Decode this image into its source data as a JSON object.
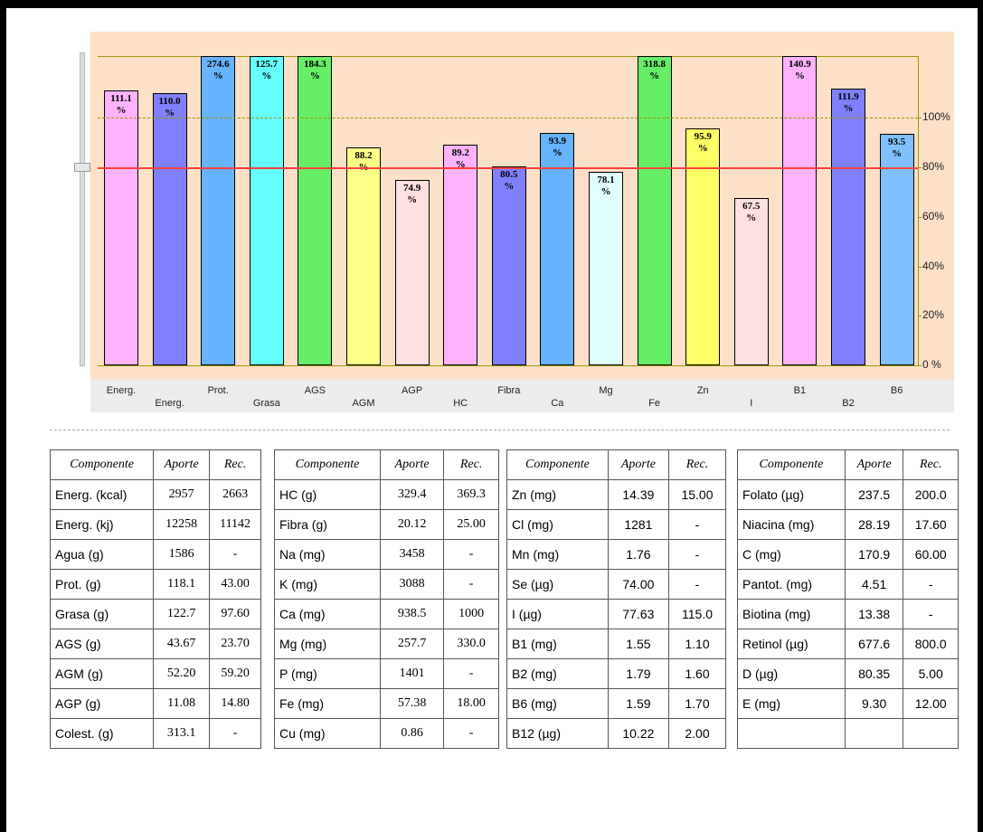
{
  "chart_data": {
    "type": "bar",
    "categories": [
      "Energ.",
      "Energ.",
      "Prot.",
      "Grasa",
      "AGS",
      "AGM",
      "AGP",
      "HC",
      "Fibra",
      "Ca",
      "Mg",
      "Fe",
      "Zn",
      "I",
      "B1",
      "B2",
      "B6"
    ],
    "values": [
      111.1,
      110.0,
      274.6,
      125.7,
      184.3,
      88.2,
      74.9,
      89.2,
      80.5,
      93.9,
      78.1,
      318.8,
      95.9,
      67.5,
      140.9,
      111.9,
      93.5
    ],
    "value_labels": [
      "111.1 %",
      "110.0 %",
      "274.6 %",
      "125.7 %",
      "184.3 %",
      "88.2 %",
      "74.9 %",
      "89.2 %",
      "80.5 %",
      "93.9 %",
      "78.1 %",
      "318.8 %",
      "95.9 %",
      "67.5 %",
      "140.9 %",
      "111.9 %",
      "93.5 %"
    ],
    "colors": [
      "#ffb3ff",
      "#8080ff",
      "#66b3ff",
      "#66ffff",
      "#66ee66",
      "#ffff88",
      "#ffe0e0",
      "#ffb3ff",
      "#8080ff",
      "#66b3ff",
      "#e0ffff",
      "#66ee66",
      "#ffff66",
      "#ffe0e0",
      "#ffb3ff",
      "#8080ff",
      "#80c0ff"
    ],
    "ylim": [
      0,
      125
    ],
    "yticks": [
      {
        "value": 0,
        "label": "0 %"
      },
      {
        "value": 20,
        "label": "20%"
      },
      {
        "value": 40,
        "label": "40%"
      },
      {
        "value": 60,
        "label": "60%"
      },
      {
        "value": 80,
        "label": "80%"
      },
      {
        "value": 100,
        "label": "100%"
      }
    ],
    "lines": [
      {
        "value": 80,
        "color": "#ff4040",
        "style": "solid"
      },
      {
        "value": 100,
        "color": "#999900",
        "style": "dashed"
      }
    ]
  },
  "tables": [
    {
      "header": [
        "Componente",
        "Aporte",
        "Rec."
      ],
      "rows": [
        [
          "Energ. (kcal)",
          "2957",
          "2663"
        ],
        [
          "Energ. (kj)",
          "12258",
          "11142"
        ],
        [
          "Agua (g)",
          "1586",
          "-"
        ],
        [
          "Prot. (g)",
          "118.1",
          "43.00"
        ],
        [
          "Grasa (g)",
          "122.7",
          "97.60"
        ],
        [
          "AGS (g)",
          "43.67",
          "23.70"
        ],
        [
          "AGM (g)",
          "52.20",
          "59.20"
        ],
        [
          "AGP (g)",
          "11.08",
          "14.80"
        ],
        [
          "Colest. (g)",
          "313.1",
          "-"
        ]
      ]
    },
    {
      "header": [
        "Componente",
        "Aporte",
        "Rec."
      ],
      "rows": [
        [
          "HC (g)",
          "329.4",
          "369.3"
        ],
        [
          "Fibra (g)",
          "20.12",
          "25.00"
        ],
        [
          "Na (mg)",
          "3458",
          "-"
        ],
        [
          "K (mg)",
          "3088",
          "-"
        ],
        [
          "Ca (mg)",
          "938.5",
          "1000"
        ],
        [
          "Mg (mg)",
          "257.7",
          "330.0"
        ],
        [
          "P (mg)",
          "1401",
          "-"
        ],
        [
          "Fe (mg)",
          "57.38",
          "18.00"
        ],
        [
          "Cu (mg)",
          "0.86",
          "-"
        ]
      ]
    },
    {
      "header": [
        "Componente",
        "Aporte",
        "Rec."
      ],
      "rows": [
        [
          "Zn (mg)",
          "14.39",
          "15.00"
        ],
        [
          "Cl (mg)",
          "1281",
          "-"
        ],
        [
          "Mn (mg)",
          "1.76",
          "-"
        ],
        [
          "Se (µg)",
          "74.00",
          "-"
        ],
        [
          "I (µg)",
          "77.63",
          "115.0"
        ],
        [
          "B1 (mg)",
          "1.55",
          "1.10"
        ],
        [
          "B2 (mg)",
          "1.79",
          "1.60"
        ],
        [
          "B6 (mg)",
          "1.59",
          "1.70"
        ],
        [
          "B12 (µg)",
          "10.22",
          "2.00"
        ]
      ]
    },
    {
      "header": [
        "Componente",
        "Aporte",
        "Rec."
      ],
      "rows": [
        [
          "Folato (µg)",
          "237.5",
          "200.0"
        ],
        [
          "Niacina (mg)",
          "28.19",
          "17.60"
        ],
        [
          "C (mg)",
          "170.9",
          "60.00"
        ],
        [
          "Pantot. (mg)",
          "4.51",
          "-"
        ],
        [
          "Biotina (mg)",
          "13.38",
          "-"
        ],
        [
          "Retinol (µg)",
          "677.6",
          "800.0"
        ],
        [
          "D (µg)",
          "80.35",
          "5.00"
        ],
        [
          "E (mg)",
          "9.30",
          "12.00"
        ]
      ]
    }
  ]
}
